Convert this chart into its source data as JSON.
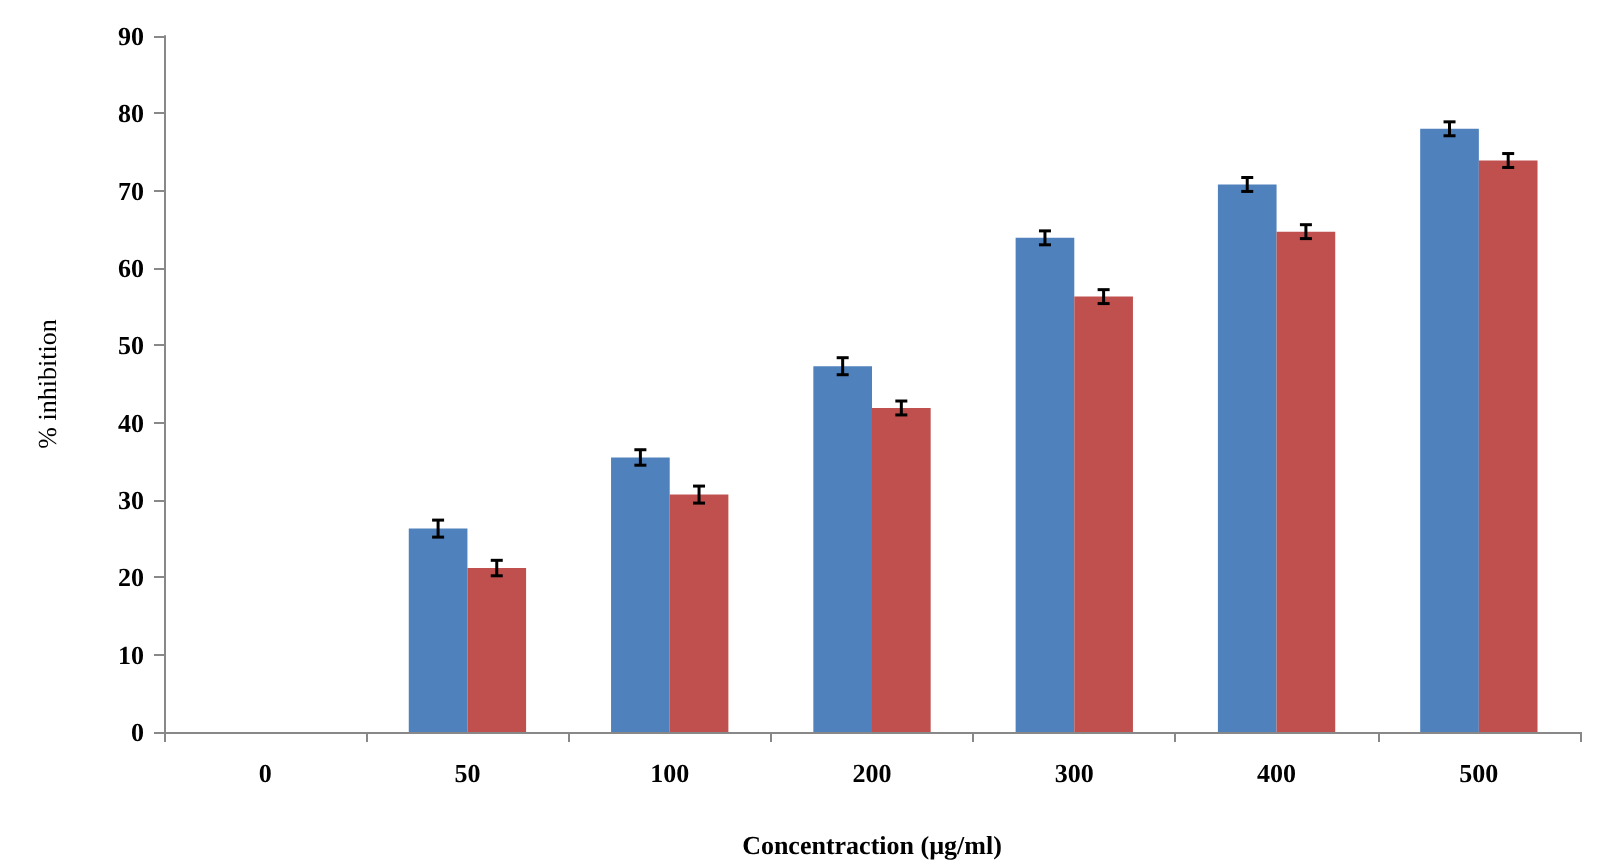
{
  "chart_data": {
    "type": "bar",
    "xlabel": "Concentraction (µg/ml)",
    "ylabel": "% inhibition",
    "categories": [
      "0",
      "50",
      "100",
      "200",
      "300",
      "400",
      "500"
    ],
    "series": [
      {
        "color": "#4f81bd",
        "values": [
          null,
          26.3,
          35.5,
          47.3,
          63.9,
          70.8,
          78.0
        ],
        "errors": [
          null,
          1.1,
          1.0,
          1.1,
          0.9,
          0.9,
          0.9
        ]
      },
      {
        "color": "#c0504d",
        "values": [
          null,
          21.2,
          30.7,
          41.9,
          56.3,
          64.7,
          73.9
        ],
        "errors": [
          null,
          1.0,
          1.1,
          0.9,
          0.9,
          0.9,
          0.9
        ]
      }
    ],
    "ylim": [
      0,
      90
    ],
    "yticks": [
      0,
      10,
      20,
      30,
      40,
      50,
      60,
      70,
      80,
      90
    ],
    "grid": false
  }
}
